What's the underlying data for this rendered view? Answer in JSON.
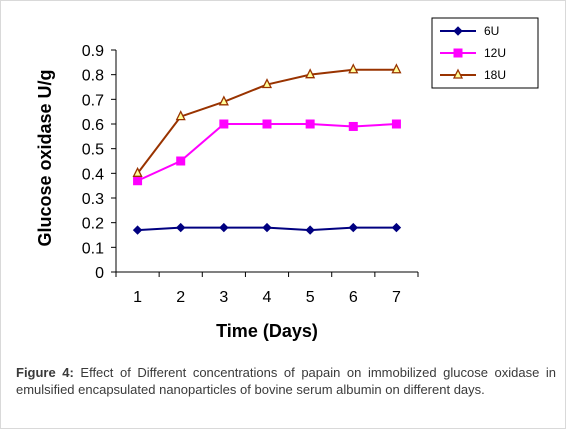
{
  "chart_data": {
    "type": "line",
    "xlabel": "Time (Days)",
    "ylabel": "Glucose oxidase U/g",
    "categories": [
      "1",
      "2",
      "3",
      "4",
      "5",
      "6",
      "7"
    ],
    "ylim": [
      0,
      0.9
    ],
    "yticks": [
      "0",
      "0.1",
      "0.2",
      "0.3",
      "0.4",
      "0.5",
      "0.6",
      "0.7",
      "0.8",
      "0.9"
    ],
    "grid": false,
    "legend_position": "top-right",
    "series": [
      {
        "name": "6U",
        "values": [
          0.17,
          0.18,
          0.18,
          0.18,
          0.17,
          0.18,
          0.18
        ],
        "color": "#000080",
        "marker": "diamond"
      },
      {
        "name": "12U",
        "values": [
          0.37,
          0.45,
          0.6,
          0.6,
          0.6,
          0.59,
          0.6
        ],
        "color": "#FF00FF",
        "marker": "square"
      },
      {
        "name": "18U",
        "values": [
          0.4,
          0.63,
          0.69,
          0.76,
          0.8,
          0.82,
          0.82
        ],
        "color": "#993300",
        "marker": "triangle"
      }
    ]
  },
  "caption": {
    "label": "Figure 4:",
    "text": " Effect of Different concentrations of papain on immobilized glucose oxidase in emulsified encapsulated nanoparticles of bovine serum albumin on different days."
  }
}
